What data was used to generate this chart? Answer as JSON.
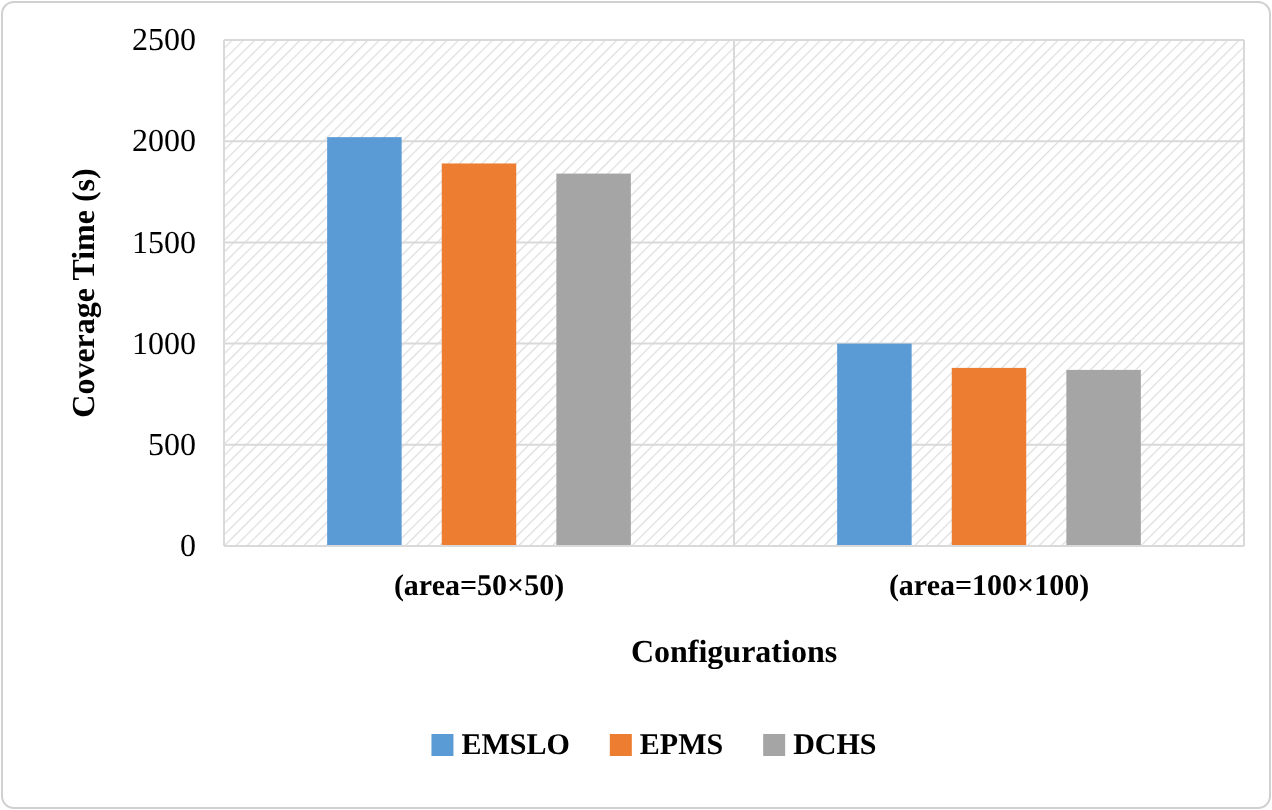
{
  "chart_data": {
    "type": "bar",
    "xlabel": "Configurations",
    "ylabel": "Coverage Time (s)",
    "categories": [
      "(area=50×50)",
      "(area=100×100)"
    ],
    "series": [
      {
        "name": "EMSLO",
        "color": "#5b9bd5",
        "values": [
          2020,
          1000
        ]
      },
      {
        "name": "EPMS",
        "color": "#ed7d31",
        "values": [
          1890,
          880
        ]
      },
      {
        "name": "DCHS",
        "color": "#a5a5a5",
        "values": [
          1840,
          870
        ]
      }
    ],
    "ylim": [
      0,
      2500
    ],
    "yticks": [
      0,
      500,
      1000,
      1500,
      2000,
      2500
    ],
    "grid": true,
    "legend": "bottom"
  }
}
